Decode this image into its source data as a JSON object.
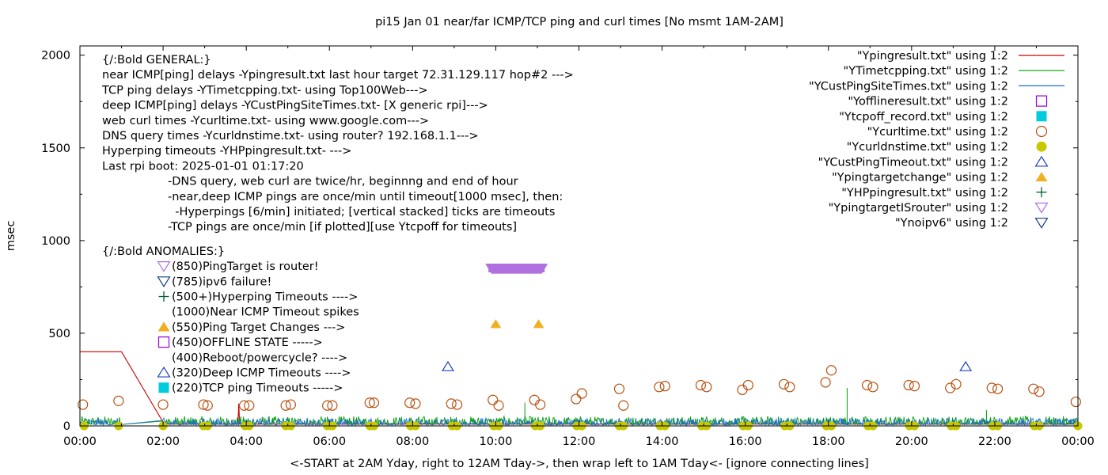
{
  "chart_data": {
    "type": "line",
    "title": "pi15 Jan 01  near/far ICMP/TCP ping and curl times [No msmt 1AM-2AM]",
    "xlabel": "<-START at 2AM Yday, right to 12AM Tday->, then wrap left to 1AM Tday<- [ignore connecting lines]",
    "ylabel": "msec",
    "xlim": [
      0,
      24
    ],
    "ylim": [
      0,
      2050
    ],
    "x_ticks": [
      "00:00",
      "02:00",
      "04:00",
      "06:00",
      "08:00",
      "10:00",
      "12:00",
      "14:00",
      "16:00",
      "18:00",
      "20:00",
      "22:00",
      "00:00"
    ],
    "y_ticks": [
      "0",
      "500",
      "1000",
      "1500",
      "2000"
    ],
    "grid": false,
    "legend_position": "top-right",
    "legend": [
      {
        "label": "\"Ypingresult.txt\" using 1:2",
        "marker": "line",
        "color": "#cc0000"
      },
      {
        "label": "\"YTimetcpping.txt\" using 1:2",
        "marker": "line",
        "color": "#00a000"
      },
      {
        "label": "\"YCustPingSiteTimes.txt\" using 1:2",
        "marker": "line",
        "color": "#1f6fd0"
      },
      {
        "label": "\"Yofflineresult.txt\" using 1:2",
        "marker": "open-square",
        "color": "#9400d3"
      },
      {
        "label": "\"Ytcpoff_record.txt\" using 1:2",
        "marker": "filled-square",
        "color": "#00ccdd"
      },
      {
        "label": "\"Ycurltime.txt\" using 1:2",
        "marker": "open-circle",
        "color": "#b85010"
      },
      {
        "label": "\"Ycurldnstime.txt\" using 1:2",
        "marker": "filled-circle",
        "color": "#c8c800"
      },
      {
        "label": "\"YCustPingTimeout.txt\" using 1:2",
        "marker": "open-triangle-up",
        "color": "#2040c0"
      },
      {
        "label": "\"Ypingtargetchange\" using 1:2",
        "marker": "filled-triangle-up",
        "color": "#f0b020"
      },
      {
        "label": "\"YHPpingresult.txt\" using 1:2",
        "marker": "plus",
        "color": "#006030"
      },
      {
        "label": "\"YpingtargetISrouter\" using 1:2",
        "marker": "open-triangle-down",
        "color": "#b070e0"
      },
      {
        "label": "\"Ynoipv6\" using 1:2",
        "marker": "open-triangle-down",
        "color": "#104080"
      }
    ],
    "annotations_general": [
      "{/:Bold GENERAL:}",
      "near ICMP[ping] delays -Ypingresult.txt last hour target 72.31.129.117 hop#2 --->",
      "TCP ping delays -YTimetcpping.txt- using Top100Web--->",
      "deep ICMP[ping] delays -YCustPingSiteTimes.txt- [X generic rpi]--->",
      "web curl times -Ycurltime.txt- using www.google.com--->",
      "DNS query times -Ycurldnstime.txt- using router? 192.168.1.1--->",
      "Hyperping timeouts -YHPpingresult.txt- --->",
      "Last rpi boot: 2025-01-01 01:17:20"
    ],
    "annotations_notes": [
      "-DNS query, web curl are twice/hr, beginnng and end of hour",
      "-near,deep ICMP pings are once/min until timeout[1000 msec], then:",
      "  -Hyperpings [6/min] initiated; [vertical stacked] ticks are timeouts",
      "-TCP pings are once/min [if plotted][use Ytcpoff for timeouts]"
    ],
    "anomalies_title": "{/:Bold ANOMALIES:}",
    "anomalies": [
      {
        "text": "(850)PingTarget is router!",
        "marker": "open-triangle-down",
        "color": "#b070e0"
      },
      {
        "text": "(785)ipv6 failure!",
        "marker": "open-triangle-down",
        "color": "#104080"
      },
      {
        "text": "(500+)Hyperping Timeouts ---->",
        "marker": "plus",
        "color": "#006030"
      },
      {
        "text": "(1000)Near ICMP Timeout spikes",
        "marker": "none",
        "color": "#cc0000"
      },
      {
        "text": "(550)Ping Target Changes --->",
        "marker": "filled-triangle-up",
        "color": "#f0b020"
      },
      {
        "text": "(450)OFFLINE STATE ----->",
        "marker": "open-square",
        "color": "#9400d3"
      },
      {
        "text": "(400)Reboot/powercycle? ---->",
        "marker": "none",
        "color": "#000000"
      },
      {
        "text": "(320)Deep ICMP Timeouts ---->",
        "marker": "open-triangle-up",
        "color": "#2040c0"
      },
      {
        "text": "(220)TCP ping Timeouts ----->",
        "marker": "filled-square",
        "color": "#00ccdd"
      }
    ],
    "series": [
      {
        "name": "\"Ypingresult.txt\" using 1:2",
        "style": "line",
        "color": "#cc0000",
        "x": [
          0,
          1.0,
          2.0,
          2.02,
          3.8,
          3.82,
          3.84,
          24
        ],
        "y": [
          400,
          400,
          20,
          10,
          10,
          120,
          10,
          10
        ]
      },
      {
        "name": "\"YTimetcpping.txt\" using 1:2",
        "style": "noisy-line",
        "color": "#00a000",
        "x_range": [
          0,
          24
        ],
        "baseline": 25,
        "amplitude": 45,
        "spikes": [
          {
            "x": 18.45,
            "y": 205
          },
          {
            "x": 10.7,
            "y": 125
          },
          {
            "x": 21.8,
            "y": 85
          }
        ]
      },
      {
        "name": "\"YCustPingSiteTimes.txt\" using 1:2",
        "style": "noisy-line",
        "color": "#1f6fd0",
        "x_range": [
          0,
          24
        ],
        "baseline": 15,
        "amplitude": 38,
        "spikes": []
      },
      {
        "name": "\"Ycurltime.txt\" using 1:2",
        "style": "open-circle",
        "color": "#b85010",
        "x": [
          0.07,
          0.93,
          2.0,
          2.97,
          3.07,
          3.95,
          4.07,
          4.95,
          5.07,
          5.95,
          6.07,
          6.97,
          7.07,
          7.93,
          8.07,
          8.93,
          9.07,
          9.93,
          10.07,
          10.93,
          11.07,
          11.93,
          12.07,
          12.97,
          13.07,
          13.93,
          14.07,
          14.93,
          15.07,
          15.93,
          16.07,
          16.93,
          17.07,
          17.93,
          18.07,
          18.93,
          19.07,
          19.93,
          20.07,
          20.93,
          21.07,
          21.93,
          22.07,
          22.93,
          23.07,
          23.95
        ],
        "y": [
          115,
          135,
          115,
          115,
          110,
          110,
          110,
          110,
          115,
          110,
          110,
          125,
          125,
          125,
          120,
          120,
          115,
          140,
          110,
          140,
          115,
          145,
          175,
          200,
          110,
          210,
          215,
          220,
          210,
          195,
          220,
          225,
          210,
          235,
          300,
          220,
          210,
          220,
          215,
          205,
          225,
          205,
          200,
          200,
          185,
          130
        ]
      },
      {
        "name": "\"Ycurldnstime.txt\" using 1:2",
        "style": "filled-circle",
        "color": "#c8c800",
        "x": [
          0.1,
          0.93,
          2.0,
          2.97,
          3.07,
          3.97,
          4.07,
          4.95,
          5.07,
          5.95,
          6.07,
          6.97,
          7.07,
          7.95,
          8.07,
          8.95,
          9.07,
          9.95,
          10.07,
          10.95,
          11.07,
          11.95,
          12.07,
          12.97,
          13.07,
          13.95,
          14.07,
          14.95,
          15.07,
          15.95,
          16.07,
          16.95,
          17.07,
          17.95,
          18.07,
          18.95,
          19.07,
          19.95,
          20.07,
          20.95,
          21.07,
          21.95,
          22.07,
          22.95,
          23.07,
          24.0
        ],
        "y": [
          0,
          0,
          0,
          0,
          0,
          0,
          0,
          0,
          0,
          0,
          0,
          0,
          0,
          0,
          0,
          0,
          0,
          0,
          0,
          0,
          0,
          0,
          0,
          0,
          0,
          0,
          0,
          0,
          0,
          0,
          0,
          0,
          0,
          0,
          0,
          0,
          0,
          0,
          0,
          0,
          0,
          0,
          0,
          0,
          0,
          0
        ]
      },
      {
        "name": "\"YCustPingTimeout.txt\" using 1:2",
        "style": "open-triangle-up",
        "color": "#2040c0",
        "x": [
          8.85,
          21.3
        ],
        "y": [
          320,
          320
        ]
      },
      {
        "name": "\"Ypingtargetchange\" using 1:2",
        "style": "filled-triangle-up",
        "color": "#f0b020",
        "x": [
          10.0,
          11.03
        ],
        "y": [
          550,
          550
        ]
      },
      {
        "name": "\"YpingtargetISrouter\" using 1:2",
        "style": "open-triangle-down-dense",
        "color": "#b070e0",
        "x_range": [
          9.9,
          11.1
        ],
        "y": 850
      }
    ]
  }
}
